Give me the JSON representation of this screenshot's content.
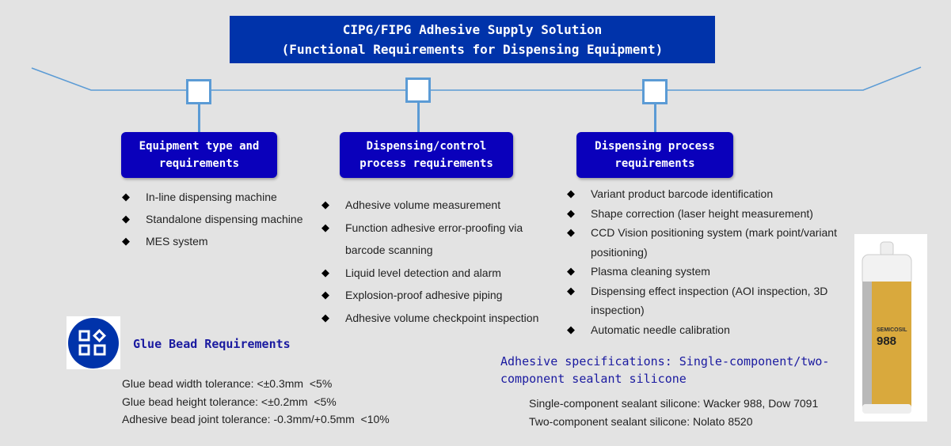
{
  "title": {
    "line1": "CIPG/FIPG Adhesive Supply Solution",
    "line2": "(Functional Requirements for Dispensing Equipment)"
  },
  "columns": [
    {
      "header": "Equipment type and requirements",
      "items": [
        "In-line dispensing machine",
        "Standalone dispensing machine",
        "MES system"
      ]
    },
    {
      "header": "Dispensing/control process requirements",
      "items": [
        "Adhesive volume measurement",
        "Function adhesive error-proofing via barcode scanning",
        "Liquid level detection and alarm",
        "Explosion-proof adhesive piping",
        "Adhesive volume checkpoint inspection"
      ]
    },
    {
      "header": "Dispensing process requirements",
      "items": [
        "Variant product barcode identification",
        "Shape correction (laser height measurement)",
        "CCD Vision positioning system (mark point/variant positioning)",
        "Plasma cleaning system",
        "Dispensing effect inspection (AOI inspection, 3D inspection)",
        "Automatic needle calibration"
      ]
    }
  ],
  "glue_bead": {
    "title": "Glue Bead Requirements",
    "items": [
      "Glue bead width tolerance: <±0.3mm  <5%",
      "Glue bead height tolerance: <±0.2mm  <5%",
      "Adhesive bead joint tolerance: -0.3mm/+0.5mm  <10%"
    ]
  },
  "adhesive_specs": {
    "title": "Adhesive specifications: Single-component/two-component sealant silicone",
    "items": [
      "Single-component sealant silicone: Wacker 988, Dow 7091",
      "Two-component sealant silicone: Nolato 8520"
    ]
  },
  "product_image": {
    "brand": "SEMICOSIL",
    "number": "988"
  },
  "colors": {
    "title_bg": "#0033aa",
    "header_bg": "#0a00bb",
    "line": "#5b9bd5",
    "accent_text": "#1a1aa0"
  }
}
